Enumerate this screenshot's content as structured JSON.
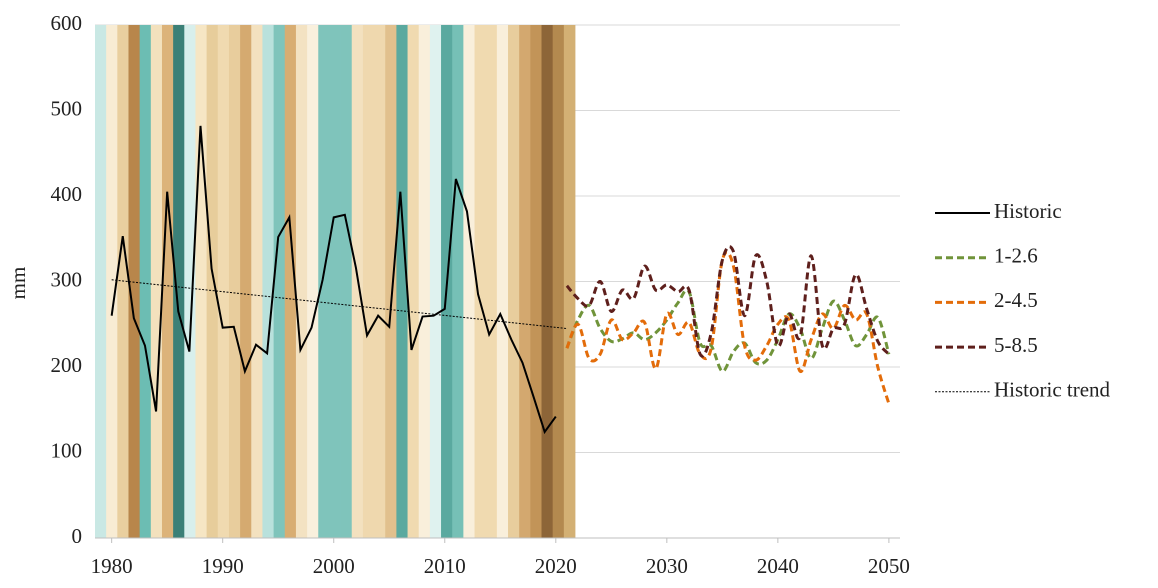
{
  "chart_data": {
    "type": "line",
    "y_label": "mm",
    "xlim": [
      1978.5,
      2051
    ],
    "ylim": [
      0,
      600
    ],
    "xticks": [
      1980,
      1990,
      2000,
      2010,
      2020,
      2030,
      2040,
      2050
    ],
    "yticks": [
      0,
      100,
      200,
      300,
      400,
      500,
      600
    ],
    "grid": true,
    "stripe_colors": [
      "#c9e8e4",
      "#f8ecd4",
      "#e9cf9f",
      "#b8864b",
      "#6cbdb3",
      "#f3e1bd",
      "#dcb37a",
      "#3b8077",
      "#d8efec",
      "#f6e6c4",
      "#e7cd9b",
      "#f0dab0",
      "#e8cd9d",
      "#d5aa70",
      "#f3e1bf",
      "#b9e1dc",
      "#7fc4bb",
      "#d8ad72",
      "#f3e2c2",
      "#f9f0dd",
      "#7fc4bb",
      "#7fc4bb",
      "#7fc4bb",
      "#f3e1bf",
      "#efd8ae",
      "#efd8ae",
      "#e1c08d",
      "#5aa99f",
      "#f0dab0",
      "#f9efdb",
      "#dff2ef",
      "#5aa99f",
      "#76c0b6",
      "#f9efdb",
      "#f0dab0",
      "#f0dab0",
      "#f9efdb",
      "#e8cd9d",
      "#d3a86f",
      "#c29458",
      "#8d6538",
      "#b3894f",
      "#d3b074"
    ],
    "series": [
      {
        "name": "Historic",
        "color": "#000000",
        "style": "solid",
        "x": [
          1980,
          1981,
          1982,
          1983,
          1984,
          1985,
          1986,
          1987,
          1988,
          1989,
          1990,
          1991,
          1992,
          1993,
          1994,
          1995,
          1996,
          1997,
          1998,
          1999,
          2000,
          2001,
          2002,
          2003,
          2004,
          2005,
          2006,
          2007,
          2008,
          2009,
          2010,
          2011,
          2012,
          2013,
          2014,
          2015,
          2016,
          2017,
          2018,
          2019,
          2020
        ],
        "values": [
          260,
          353,
          257,
          225,
          148,
          405,
          265,
          218,
          482,
          315,
          246,
          247,
          195,
          226,
          216,
          352,
          375,
          220,
          246,
          302,
          375,
          378,
          316,
          237,
          260,
          247,
          405,
          220,
          259,
          260,
          268,
          420,
          382,
          285,
          238,
          262,
          232,
          205,
          165,
          124,
          142
        ]
      },
      {
        "name": "1-2.6",
        "color": "#70943a",
        "style": "dashed",
        "x": [
          2021,
          2022,
          2023,
          2024,
          2025,
          2026,
          2027,
          2028,
          2029,
          2030,
          2031,
          2032,
          2033,
          2034,
          2035,
          2036,
          2037,
          2038,
          2039,
          2040,
          2041,
          2042,
          2043,
          2044,
          2045,
          2046,
          2047,
          2048,
          2049,
          2050
        ],
        "values": [
          222,
          255,
          272,
          245,
          230,
          233,
          240,
          232,
          240,
          255,
          275,
          288,
          228,
          225,
          195,
          218,
          228,
          205,
          208,
          232,
          262,
          245,
          210,
          245,
          277,
          255,
          225,
          238,
          258,
          215
        ]
      },
      {
        "name": "2-4.5",
        "color": "#e36c0a",
        "style": "dashed",
        "x": [
          2021,
          2022,
          2023,
          2024,
          2025,
          2026,
          2027,
          2028,
          2029,
          2030,
          2031,
          2032,
          2033,
          2034,
          2035,
          2036,
          2037,
          2038,
          2039,
          2040,
          2041,
          2042,
          2043,
          2044,
          2045,
          2046,
          2047,
          2048,
          2049,
          2050
        ],
        "values": [
          222,
          250,
          210,
          215,
          255,
          232,
          240,
          252,
          198,
          262,
          238,
          252,
          215,
          222,
          325,
          318,
          225,
          208,
          225,
          250,
          255,
          195,
          232,
          262,
          245,
          272,
          255,
          262,
          200,
          157
        ]
      },
      {
        "name": "5-8.5",
        "color": "#5e1f1c",
        "style": "dashed",
        "x": [
          2021,
          2022,
          2023,
          2024,
          2025,
          2026,
          2027,
          2028,
          2029,
          2030,
          2031,
          2032,
          2033,
          2034,
          2035,
          2036,
          2037,
          2038,
          2039,
          2040,
          2041,
          2042,
          2043,
          2044,
          2045,
          2046,
          2047,
          2048,
          2049,
          2050
        ],
        "values": [
          295,
          280,
          272,
          300,
          265,
          290,
          280,
          318,
          290,
          296,
          288,
          290,
          215,
          240,
          325,
          335,
          260,
          330,
          300,
          225,
          262,
          235,
          330,
          225,
          245,
          250,
          308,
          268,
          230,
          215
        ]
      },
      {
        "name": "Historic trend",
        "color": "#000000",
        "style": "dotted",
        "x": [
          1980,
          2021
        ],
        "values": [
          302,
          245
        ]
      }
    ]
  }
}
